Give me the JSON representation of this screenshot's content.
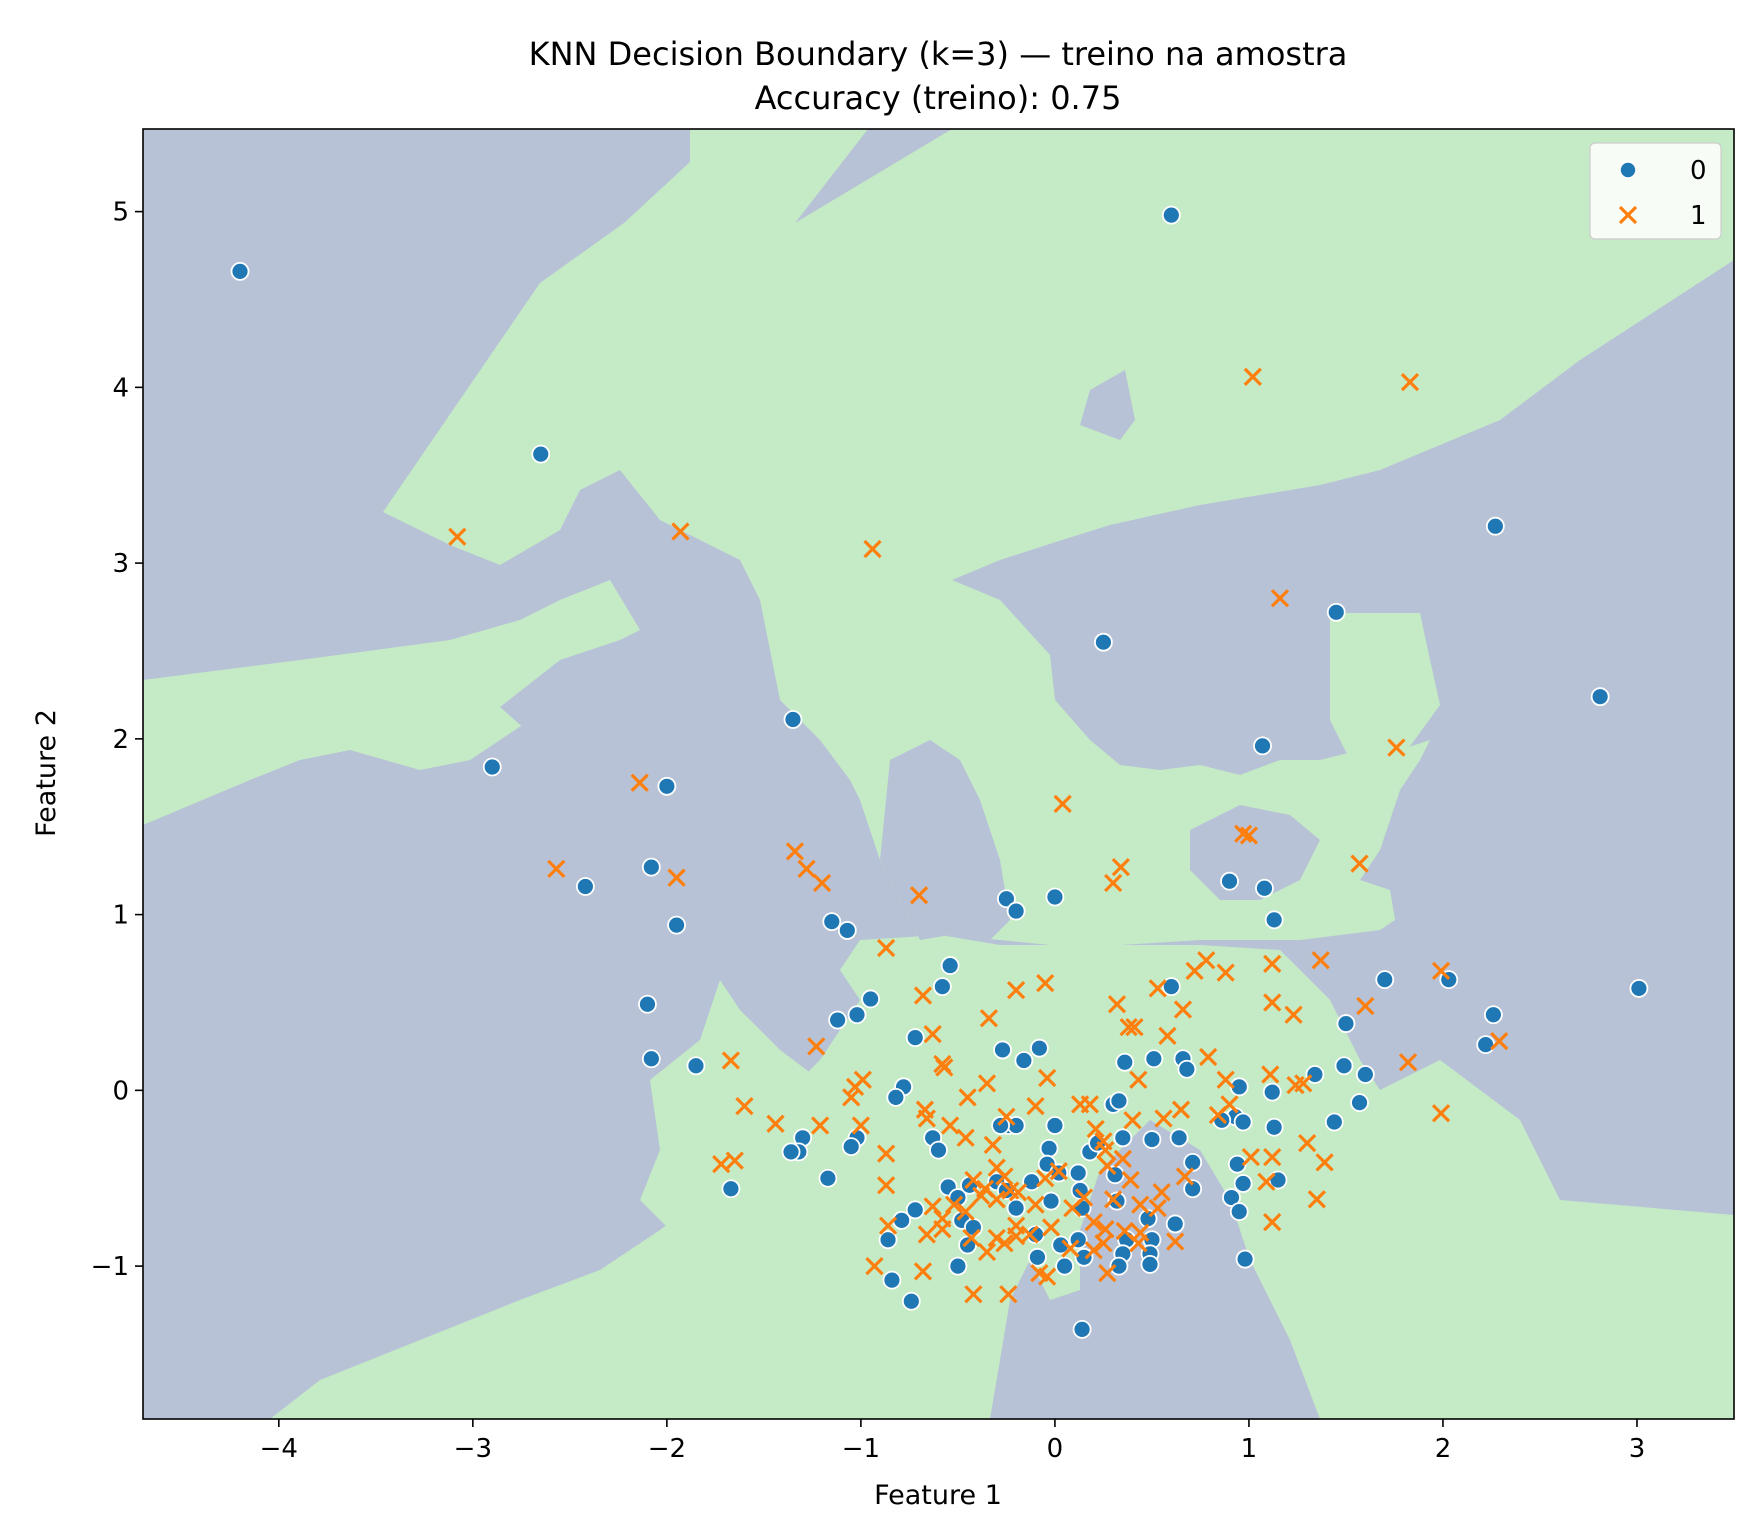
{
  "chart_data": {
    "type": "scatter",
    "title": "KNN Decision Boundary (k=3) — treino na amostra",
    "subtitle": "Accuracy (treino): 0.75",
    "xlabel": "Feature 1",
    "ylabel": "Feature 2",
    "xlim": [
      -4.7,
      3.5
    ],
    "ylim": [
      -1.87,
      5.47
    ],
    "x_ticks": [
      -4,
      -3,
      -2,
      -1,
      0,
      1,
      2,
      3
    ],
    "x_tick_labels": [
      "−4",
      "−3",
      "−2",
      "−1",
      "0",
      "1",
      "2",
      "3"
    ],
    "y_ticks": [
      -1,
      0,
      1,
      2,
      3,
      4,
      5
    ],
    "y_tick_labels": [
      "−1",
      "0",
      "1",
      "2",
      "3",
      "4",
      "5"
    ],
    "grid": false,
    "legend_position": "top-right",
    "background_regions": {
      "class_0_color": "#b8c2d6",
      "class_1_color": "#c5ebc6",
      "default_class": "0"
    },
    "series": [
      {
        "name": "0",
        "marker": "circle",
        "color": "#1f77b4",
        "points": [
          [
            -4.2,
            4.66
          ],
          [
            -2.65,
            3.62
          ],
          [
            0.6,
            4.98
          ],
          [
            2.27,
            3.21
          ],
          [
            1.45,
            2.72
          ],
          [
            0.25,
            2.55
          ],
          [
            2.81,
            2.24
          ],
          [
            1.07,
            1.96
          ],
          [
            -1.35,
            2.11
          ],
          [
            -2.9,
            1.84
          ],
          [
            -2.0,
            1.73
          ],
          [
            -2.08,
            1.27
          ],
          [
            -2.42,
            1.16
          ],
          [
            0.9,
            1.19
          ],
          [
            1.08,
            1.15
          ],
          [
            1.13,
            0.97
          ],
          [
            -0.25,
            1.09
          ],
          [
            -0.2,
            1.02
          ],
          [
            0.0,
            1.1
          ],
          [
            -1.95,
            0.94
          ],
          [
            -1.15,
            0.96
          ],
          [
            -1.07,
            0.91
          ],
          [
            -0.54,
            0.71
          ],
          [
            -0.58,
            0.59
          ],
          [
            -0.95,
            0.52
          ],
          [
            -1.02,
            0.43
          ],
          [
            -1.12,
            0.4
          ],
          [
            -2.1,
            0.49
          ],
          [
            -2.08,
            0.18
          ],
          [
            -1.85,
            0.14
          ],
          [
            -0.72,
            0.3
          ],
          [
            -0.78,
            0.02
          ],
          [
            -0.27,
            0.23
          ],
          [
            -0.16,
            0.17
          ],
          [
            -0.08,
            0.24
          ],
          [
            0.36,
            0.16
          ],
          [
            0.51,
            0.18
          ],
          [
            0.66,
            0.18
          ],
          [
            0.6,
            0.59
          ],
          [
            0.68,
            0.12
          ],
          [
            1.7,
            0.63
          ],
          [
            2.03,
            0.63
          ],
          [
            2.26,
            0.43
          ],
          [
            2.22,
            0.26
          ],
          [
            1.5,
            0.38
          ],
          [
            1.49,
            0.14
          ],
          [
            1.6,
            0.09
          ],
          [
            1.34,
            0.09
          ],
          [
            1.57,
            -0.07
          ],
          [
            1.44,
            -0.18
          ],
          [
            3.01,
            0.58
          ],
          [
            0.95,
            0.02
          ],
          [
            1.12,
            -0.01
          ],
          [
            0.93,
            -0.15
          ],
          [
            0.97,
            -0.18
          ],
          [
            1.13,
            -0.21
          ],
          [
            0.94,
            -0.42
          ],
          [
            0.97,
            -0.53
          ],
          [
            1.15,
            -0.51
          ],
          [
            0.91,
            -0.61
          ],
          [
            0.95,
            -0.69
          ],
          [
            0.98,
            -0.96
          ],
          [
            -0.82,
            -0.04
          ],
          [
            -1.02,
            -0.27
          ],
          [
            -1.05,
            -0.32
          ],
          [
            -1.3,
            -0.27
          ],
          [
            -1.32,
            -0.35
          ],
          [
            -1.36,
            -0.35
          ],
          [
            -1.17,
            -0.5
          ],
          [
            -0.63,
            -0.27
          ],
          [
            -0.6,
            -0.34
          ],
          [
            -0.55,
            -0.55
          ],
          [
            -0.5,
            -0.61
          ],
          [
            -0.44,
            -0.54
          ],
          [
            -0.48,
            -0.74
          ],
          [
            -0.42,
            -0.78
          ],
          [
            -0.45,
            -0.88
          ],
          [
            -0.5,
            -1.0
          ],
          [
            -0.24,
            -0.2
          ],
          [
            -0.2,
            -0.2
          ],
          [
            -0.28,
            -0.2
          ],
          [
            -0.3,
            -0.52
          ],
          [
            -0.25,
            -0.57
          ],
          [
            -0.2,
            -0.67
          ],
          [
            -0.12,
            -0.52
          ],
          [
            -0.1,
            -0.82
          ],
          [
            -0.09,
            -0.95
          ],
          [
            0.0,
            -0.2
          ],
          [
            -0.03,
            -0.33
          ],
          [
            -0.04,
            -0.42
          ],
          [
            0.02,
            -0.47
          ],
          [
            -0.02,
            -0.63
          ],
          [
            0.03,
            -0.88
          ],
          [
            0.05,
            -1.0
          ],
          [
            0.12,
            -0.47
          ],
          [
            0.13,
            -0.57
          ],
          [
            0.14,
            -0.67
          ],
          [
            0.12,
            -0.85
          ],
          [
            0.15,
            -0.95
          ],
          [
            0.18,
            -0.35
          ],
          [
            0.22,
            -0.3
          ],
          [
            0.3,
            -0.08
          ],
          [
            0.33,
            -0.06
          ],
          [
            0.31,
            -0.48
          ],
          [
            0.35,
            -0.27
          ],
          [
            0.32,
            -0.63
          ],
          [
            0.37,
            -0.85
          ],
          [
            0.35,
            -0.93
          ],
          [
            0.33,
            -1.0
          ],
          [
            0.48,
            -0.73
          ],
          [
            0.5,
            -0.85
          ],
          [
            0.49,
            -0.93
          ],
          [
            0.49,
            -0.99
          ],
          [
            0.62,
            -0.76
          ],
          [
            0.5,
            -0.28
          ],
          [
            0.64,
            -0.27
          ],
          [
            0.71,
            -0.41
          ],
          [
            0.71,
            -0.56
          ],
          [
            0.86,
            -0.17
          ],
          [
            -0.86,
            -0.85
          ],
          [
            -0.79,
            -0.74
          ],
          [
            -0.72,
            -0.68
          ],
          [
            -0.84,
            -1.08
          ],
          [
            -0.74,
            -1.2
          ],
          [
            -1.67,
            -0.56
          ],
          [
            0.14,
            -1.36
          ]
        ]
      },
      {
        "name": "1",
        "marker": "x",
        "color": "#ff7f0e",
        "points": [
          [
            1.02,
            4.06
          ],
          [
            1.83,
            4.03
          ],
          [
            -3.08,
            3.15
          ],
          [
            -1.93,
            3.18
          ],
          [
            -0.94,
            3.08
          ],
          [
            1.16,
            2.8
          ],
          [
            1.76,
            1.95
          ],
          [
            -2.14,
            1.75
          ],
          [
            0.04,
            1.63
          ],
          [
            0.97,
            1.46
          ],
          [
            1.0,
            1.45
          ],
          [
            -1.34,
            1.36
          ],
          [
            -1.28,
            1.26
          ],
          [
            -1.2,
            1.18
          ],
          [
            -2.57,
            1.26
          ],
          [
            -1.95,
            1.21
          ],
          [
            -0.7,
            1.11
          ],
          [
            0.34,
            1.27
          ],
          [
            0.3,
            1.18
          ],
          [
            1.57,
            1.29
          ],
          [
            -0.87,
            0.81
          ],
          [
            -0.05,
            0.61
          ],
          [
            0.78,
            0.74
          ],
          [
            0.72,
            0.68
          ],
          [
            0.88,
            0.67
          ],
          [
            1.12,
            0.72
          ],
          [
            1.37,
            0.74
          ],
          [
            1.99,
            0.68
          ],
          [
            -0.68,
            0.54
          ],
          [
            -0.2,
            0.57
          ],
          [
            0.32,
            0.49
          ],
          [
            0.53,
            0.58
          ],
          [
            0.66,
            0.46
          ],
          [
            1.12,
            0.5
          ],
          [
            1.23,
            0.43
          ],
          [
            1.6,
            0.48
          ],
          [
            2.29,
            0.28
          ],
          [
            -0.34,
            0.41
          ],
          [
            -0.63,
            0.32
          ],
          [
            0.38,
            0.36
          ],
          [
            0.41,
            0.36
          ],
          [
            0.58,
            0.31
          ],
          [
            -1.23,
            0.25
          ],
          [
            -0.57,
            0.13
          ],
          [
            -0.58,
            0.15
          ],
          [
            0.79,
            0.19
          ],
          [
            1.11,
            0.09
          ],
          [
            1.24,
            0.03
          ],
          [
            1.28,
            0.04
          ],
          [
            1.82,
            0.16
          ],
          [
            -1.67,
            0.17
          ],
          [
            -0.99,
            0.06
          ],
          [
            -1.03,
            0.02
          ],
          [
            -1.05,
            -0.04
          ],
          [
            -0.35,
            0.04
          ],
          [
            -0.04,
            0.07
          ],
          [
            0.43,
            0.06
          ],
          [
            0.88,
            0.06
          ],
          [
            -1.6,
            -0.09
          ],
          [
            -1.44,
            -0.19
          ],
          [
            -1.21,
            -0.2
          ],
          [
            -1.0,
            -0.2
          ],
          [
            -0.67,
            -0.11
          ],
          [
            -0.66,
            -0.16
          ],
          [
            -0.45,
            -0.04
          ],
          [
            -0.25,
            -0.15
          ],
          [
            -0.1,
            -0.09
          ],
          [
            0.13,
            -0.08
          ],
          [
            0.18,
            -0.08
          ],
          [
            0.25,
            -0.29
          ],
          [
            0.4,
            -0.17
          ],
          [
            0.56,
            -0.16
          ],
          [
            0.65,
            -0.11
          ],
          [
            0.9,
            -0.08
          ],
          [
            0.84,
            -0.14
          ],
          [
            1.99,
            -0.13
          ],
          [
            -0.54,
            -0.2
          ],
          [
            -0.46,
            -0.27
          ],
          [
            -0.32,
            -0.31
          ],
          [
            0.21,
            -0.22
          ],
          [
            0.26,
            -0.34
          ],
          [
            0.35,
            -0.39
          ],
          [
            1.01,
            -0.38
          ],
          [
            1.12,
            -0.38
          ],
          [
            1.3,
            -0.3
          ],
          [
            1.39,
            -0.41
          ],
          [
            -1.72,
            -0.42
          ],
          [
            -1.65,
            -0.4
          ],
          [
            -0.87,
            -0.36
          ],
          [
            -0.3,
            -0.44
          ],
          [
            -0.42,
            -0.51
          ],
          [
            -0.36,
            -0.56
          ],
          [
            -0.26,
            -0.49
          ],
          [
            -0.23,
            -0.57
          ],
          [
            -0.05,
            -0.5
          ],
          [
            0.02,
            -0.46
          ],
          [
            0.27,
            -0.43
          ],
          [
            0.39,
            -0.51
          ],
          [
            0.55,
            -0.58
          ],
          [
            0.67,
            -0.49
          ],
          [
            0.44,
            -0.65
          ],
          [
            1.09,
            -0.52
          ],
          [
            1.35,
            -0.62
          ],
          [
            -0.87,
            -0.54
          ],
          [
            -0.63,
            -0.66
          ],
          [
            -0.58,
            -0.73
          ],
          [
            -0.52,
            -0.65
          ],
          [
            -0.46,
            -0.69
          ],
          [
            -0.38,
            -0.6
          ],
          [
            -0.3,
            -0.62
          ],
          [
            -0.19,
            -0.58
          ],
          [
            -0.1,
            -0.65
          ],
          [
            0.09,
            -0.67
          ],
          [
            0.15,
            -0.61
          ],
          [
            0.3,
            -0.62
          ],
          [
            0.53,
            -0.67
          ],
          [
            1.12,
            -0.75
          ],
          [
            -0.86,
            -0.77
          ],
          [
            -0.66,
            -0.82
          ],
          [
            -0.58,
            -0.79
          ],
          [
            -0.43,
            -0.84
          ],
          [
            -0.3,
            -0.84
          ],
          [
            -0.2,
            -0.77
          ],
          [
            -0.13,
            -0.82
          ],
          [
            -0.02,
            -0.78
          ],
          [
            0.2,
            -0.75
          ],
          [
            0.26,
            -0.79
          ],
          [
            0.36,
            -0.8
          ],
          [
            0.44,
            -0.81
          ],
          [
            0.62,
            -0.86
          ],
          [
            -0.35,
            -0.92
          ],
          [
            -0.26,
            -0.87
          ],
          [
            -0.2,
            -0.83
          ],
          [
            0.08,
            -0.9
          ],
          [
            0.2,
            -0.91
          ],
          [
            0.25,
            -0.87
          ],
          [
            0.43,
            -0.87
          ],
          [
            -0.93,
            -1.0
          ],
          [
            -0.68,
            -1.03
          ],
          [
            -0.08,
            -1.04
          ],
          [
            -0.04,
            -1.06
          ],
          [
            0.27,
            -1.04
          ],
          [
            -0.42,
            -1.16
          ],
          [
            -0.24,
            -1.16
          ]
        ]
      }
    ]
  }
}
